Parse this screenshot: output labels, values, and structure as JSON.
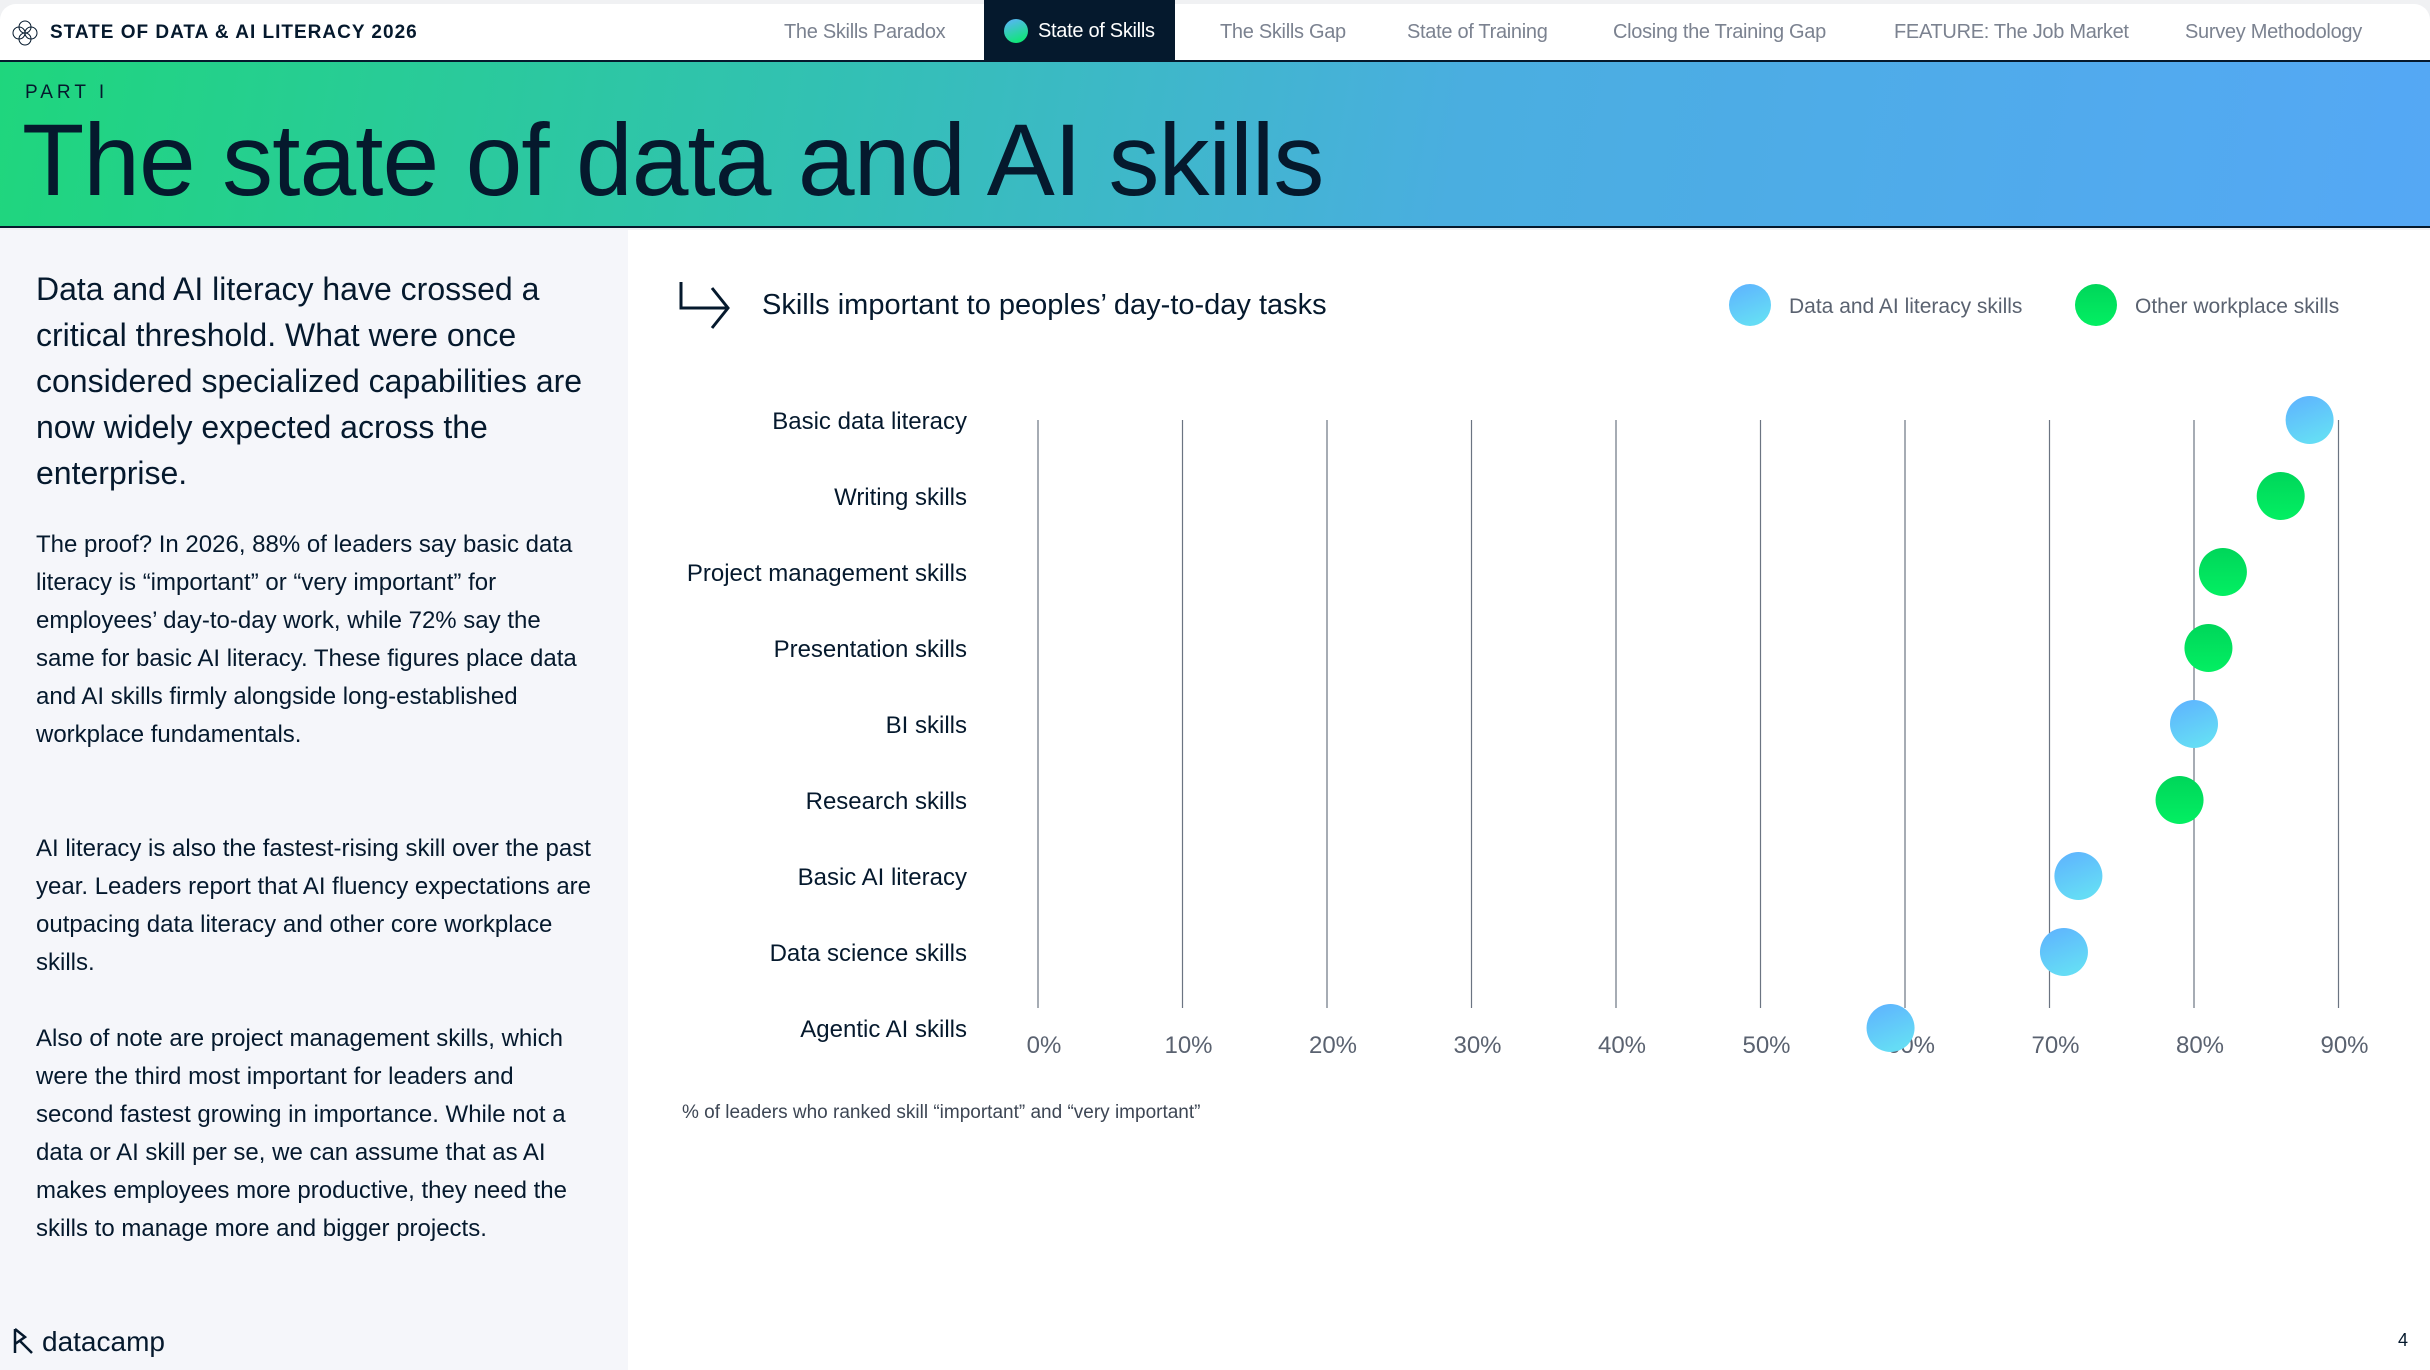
{
  "nav": {
    "brand": "STATE OF DATA & AI LITERACY 2026",
    "tabs": [
      {
        "label": "The Skills Paradox",
        "active": false
      },
      {
        "label": "State of Skills",
        "active": true
      },
      {
        "label": "The Skills Gap",
        "active": false
      },
      {
        "label": "State of Training",
        "active": false
      },
      {
        "label": "Closing the Training Gap",
        "active": false
      },
      {
        "label": "FEATURE: The Job Market",
        "active": false
      },
      {
        "label": "Survey Methodology",
        "active": false
      }
    ]
  },
  "hero": {
    "part": "PART I",
    "title": "The state of data and AI skills"
  },
  "left": {
    "lead": "Data and AI literacy have crossed a critical threshold. What were once considered specialized capabilities are now widely expected across the enterprise.",
    "paragraphs": [
      "The proof? In 2026, 88% of leaders say basic data literacy is “important” or “very important” for employees’ day-to-day work, while 72% say the same for basic AI literacy. These figures place data and AI skills firmly alongside long-established workplace fundamentals.",
      "AI literacy is also the fastest-rising skill over the past year. Leaders report that AI fluency expectations are outpacing data literacy and other core workplace skills.",
      "Also of note are project management skills, which were the third most important for leaders and second fastest growing in importance. While not a data or AI skill per se, we can assume that as AI makes employees more productive, they need the skills to manage more and bigger projects."
    ],
    "logo": "datacamp"
  },
  "page_number": "4",
  "colors": {
    "data_ai": "#5eb1ff",
    "other": "#03ef62",
    "dark": "#05192d"
  },
  "chart_data": {
    "type": "scatter",
    "title": "Skills important to peoples’ day-to-day tasks",
    "xlabel": "% of leaders who ranked skill “important” and “very important”",
    "xlim": [
      0,
      90
    ],
    "xticks": [
      "0%",
      "10%",
      "20%",
      "30%",
      "40%",
      "50%",
      "60%",
      "70%",
      "80%",
      "90%"
    ],
    "grid": true,
    "legend": [
      {
        "name": "Data and AI literacy skills",
        "key": "data_ai"
      },
      {
        "name": "Other workplace skills",
        "key": "other"
      }
    ],
    "legend_placement": "top-right",
    "categories": [
      "Basic data literacy",
      "Writing skills",
      "Project management skills",
      "Presentation skills",
      "BI skills",
      "Research skills",
      "Basic AI literacy",
      "Data science skills",
      "Agentic AI skills"
    ],
    "values": [
      88,
      86,
      82,
      81,
      80,
      79,
      72,
      71,
      59
    ],
    "groups": [
      "data_ai",
      "other",
      "other",
      "other",
      "data_ai",
      "other",
      "data_ai",
      "data_ai",
      "data_ai"
    ]
  }
}
